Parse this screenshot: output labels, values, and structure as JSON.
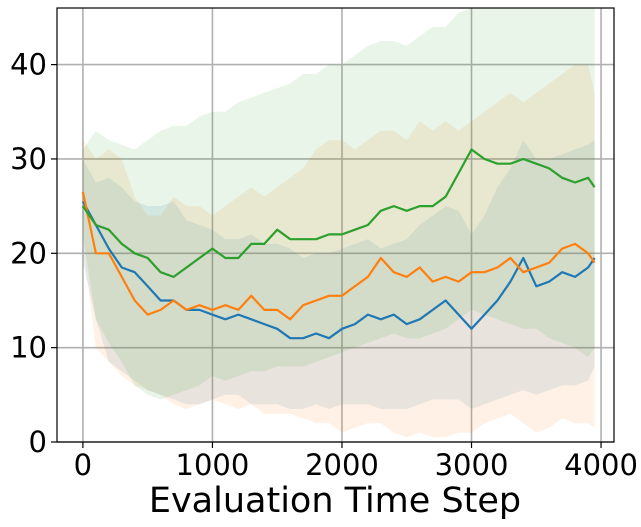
{
  "chart_data": {
    "type": "line",
    "title": "",
    "xlabel": "Evaluation Time Step",
    "ylabel": "",
    "xlim": [
      -200,
      4100
    ],
    "ylim": [
      0,
      46
    ],
    "xticks": [
      0,
      1000,
      2000,
      3000,
      4000
    ],
    "yticks": [
      0,
      10,
      20,
      30,
      40
    ],
    "grid": true,
    "legend": "none",
    "x": [
      0,
      100,
      200,
      300,
      400,
      500,
      600,
      700,
      800,
      900,
      1000,
      1100,
      1200,
      1300,
      1400,
      1500,
      1600,
      1700,
      1800,
      1900,
      2000,
      2100,
      2200,
      2300,
      2400,
      2500,
      2600,
      2700,
      2800,
      2900,
      3000,
      3100,
      3200,
      3300,
      3400,
      3500,
      3600,
      3700,
      3800,
      3900,
      3950
    ],
    "series": [
      {
        "color": "#1f77b4",
        "fill": "#1f77b4",
        "values": [
          25.5,
          23.0,
          20.5,
          18.5,
          18.0,
          16.5,
          15.0,
          15.0,
          14.0,
          14.0,
          13.5,
          13.0,
          13.5,
          13.0,
          12.5,
          12.0,
          11.0,
          11.0,
          11.5,
          11.0,
          12.0,
          12.5,
          13.5,
          13.0,
          13.5,
          12.5,
          13.0,
          14.0,
          15.0,
          13.5,
          12.0,
          13.5,
          15.0,
          17.0,
          19.5,
          16.5,
          17.0,
          18.0,
          17.5,
          18.5,
          19.5
        ],
        "lower": [
          19.0,
          13.0,
          8.5,
          7.5,
          6.5,
          5.5,
          5.0,
          4.5,
          4.0,
          4.0,
          4.5,
          5.0,
          5.0,
          4.0,
          4.0,
          4.0,
          3.5,
          3.5,
          4.0,
          3.5,
          4.0,
          4.0,
          4.0,
          3.5,
          3.5,
          3.5,
          4.0,
          4.5,
          4.5,
          4.5,
          3.5,
          4.0,
          4.5,
          5.0,
          5.5,
          5.0,
          5.5,
          6.0,
          6.0,
          6.5,
          8.0
        ],
        "upper": [
          30.0,
          27.5,
          28.0,
          27.0,
          25.5,
          25.0,
          25.0,
          25.5,
          23.5,
          23.0,
          22.5,
          21.5,
          21.5,
          22.0,
          21.0,
          21.0,
          20.5,
          19.5,
          20.0,
          20.0,
          20.5,
          21.0,
          21.5,
          20.5,
          21.0,
          21.5,
          23.0,
          24.0,
          25.0,
          24.5,
          22.0,
          24.0,
          27.0,
          29.0,
          32.0,
          30.0,
          30.0,
          30.5,
          31.0,
          31.5,
          32.0
        ]
      },
      {
        "color": "#ff7f0e",
        "fill": "#ff7f0e",
        "values": [
          26.5,
          20.0,
          20.0,
          17.5,
          15.0,
          13.5,
          14.0,
          15.0,
          14.0,
          14.5,
          14.0,
          14.5,
          14.0,
          15.5,
          14.0,
          14.0,
          13.0,
          14.5,
          15.0,
          15.5,
          15.5,
          16.5,
          17.5,
          19.5,
          18.0,
          17.5,
          18.5,
          17.0,
          17.5,
          17.0,
          18.0,
          18.0,
          18.5,
          19.5,
          18.0,
          18.5,
          19.0,
          20.5,
          21.0,
          20.0,
          19.0
        ],
        "lower": [
          21.0,
          10.0,
          8.5,
          7.0,
          6.0,
          5.5,
          5.0,
          4.0,
          3.5,
          4.0,
          4.5,
          4.0,
          3.5,
          4.0,
          3.0,
          3.0,
          3.0,
          2.5,
          2.0,
          2.0,
          1.0,
          1.5,
          2.0,
          2.0,
          1.0,
          0.5,
          1.0,
          0.5,
          0.5,
          1.0,
          1.0,
          2.0,
          2.5,
          3.0,
          2.0,
          1.0,
          1.5,
          2.5,
          2.0,
          2.0,
          1.5
        ],
        "upper": [
          32.0,
          30.0,
          31.0,
          30.0,
          26.0,
          24.0,
          24.0,
          26.0,
          25.0,
          25.0,
          24.0,
          25.0,
          26.0,
          27.0,
          26.0,
          27.0,
          28.0,
          29.0,
          31.0,
          32.0,
          32.0,
          31.0,
          32.0,
          33.0,
          33.0,
          32.0,
          34.0,
          33.0,
          34.0,
          33.0,
          34.0,
          35.0,
          36.0,
          37.0,
          36.0,
          37.0,
          38.0,
          39.0,
          40.0,
          40.0,
          37.0
        ]
      },
      {
        "color": "#2ca02c",
        "fill": "#2ca02c",
        "values": [
          25.0,
          23.0,
          22.5,
          21.0,
          20.0,
          19.5,
          18.0,
          17.5,
          18.5,
          19.5,
          20.5,
          19.5,
          19.5,
          21.0,
          21.0,
          22.5,
          21.5,
          21.5,
          21.5,
          22.0,
          22.0,
          22.5,
          23.0,
          24.5,
          25.0,
          24.5,
          25.0,
          25.0,
          26.0,
          28.5,
          31.0,
          30.0,
          29.5,
          29.5,
          30.0,
          29.5,
          29.0,
          28.0,
          27.5,
          28.0,
          27.0
        ],
        "lower": [
          22.0,
          13.0,
          10.5,
          8.5,
          6.0,
          5.0,
          4.5,
          5.0,
          5.5,
          6.0,
          7.0,
          6.5,
          7.0,
          7.5,
          7.5,
          8.0,
          8.0,
          8.0,
          8.5,
          9.0,
          9.5,
          10.0,
          10.5,
          11.0,
          11.5,
          11.0,
          11.0,
          11.5,
          12.0,
          13.0,
          14.0,
          13.5,
          13.0,
          12.5,
          12.0,
          12.0,
          11.0,
          10.5,
          10.0,
          9.0,
          10.0
        ],
        "upper": [
          31.0,
          33.0,
          32.0,
          31.5,
          31.0,
          32.0,
          33.0,
          33.5,
          33.5,
          34.5,
          35.0,
          35.0,
          36.0,
          36.5,
          37.0,
          37.5,
          38.0,
          39.0,
          39.0,
          40.0,
          40.0,
          41.0,
          42.0,
          42.5,
          42.5,
          42.0,
          43.0,
          44.0,
          44.0,
          45.5,
          46.0,
          46.0,
          46.0,
          46.0,
          46.0,
          46.0,
          46.0,
          46.0,
          46.0,
          46.0,
          46.0
        ]
      }
    ]
  }
}
